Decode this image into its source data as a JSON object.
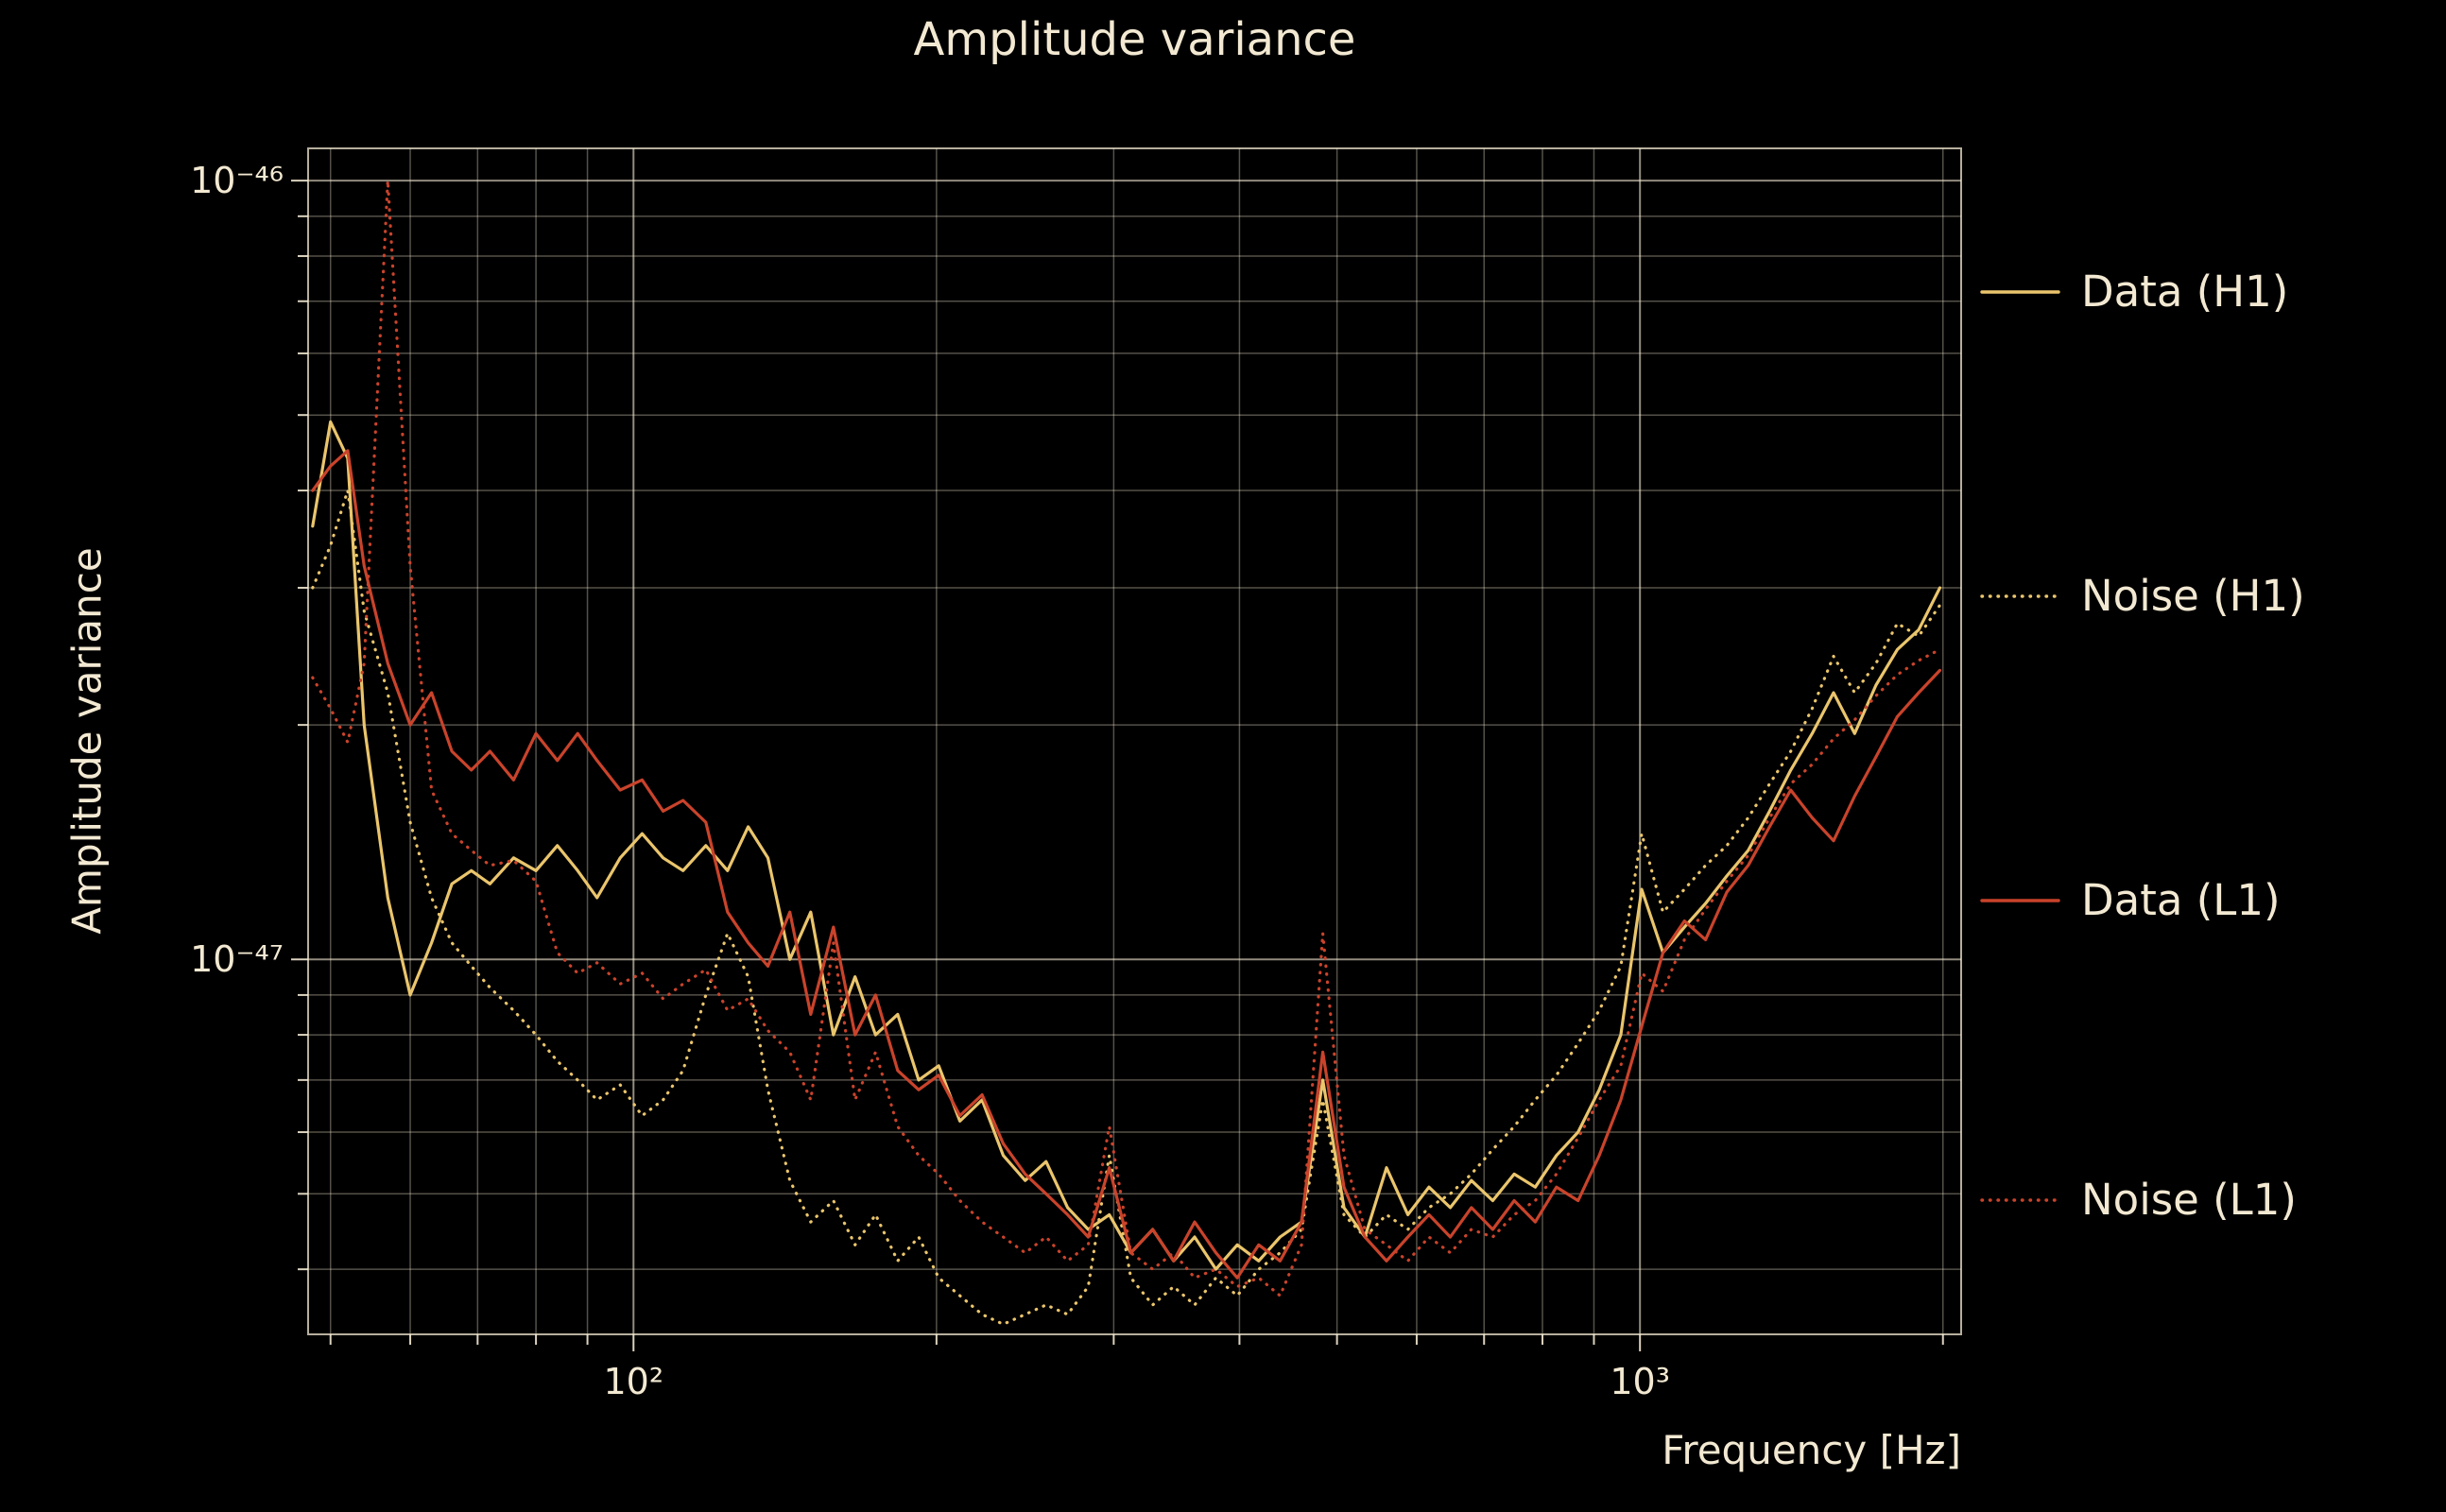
{
  "title": "Amplitude variance",
  "chart_data": {
    "type": "line",
    "title": "Amplitude variance",
    "xlabel": "Frequency [Hz]",
    "ylabel": "Amplitude variance",
    "x_scale": "log",
    "y_scale": "log",
    "grid": true,
    "legend_position": "right-outside",
    "xlim": [
      47.5,
      2085
    ],
    "ylim": [
      3.3e-48,
      1.1e-46
    ],
    "x_ticks": [
      {
        "value": 100,
        "label": "10²"
      },
      {
        "value": 1000,
        "label": "10³"
      }
    ],
    "y_ticks": [
      {
        "value": 1e-46,
        "label": "10⁻⁴⁶"
      },
      {
        "value": 1e-47,
        "label": "10⁻⁴⁷"
      }
    ],
    "colors": {
      "background": "#000000",
      "text": "#f3e9d2",
      "grid": "#f3e9d2",
      "gold": "#eac56c",
      "red": "#c9432b"
    },
    "values_unit": 1e-48,
    "frequencies_hz": [
      48,
      50,
      52,
      54,
      57,
      60,
      63,
      66,
      69,
      72,
      76,
      80,
      84,
      88,
      92,
      97,
      102,
      107,
      112,
      118,
      124,
      130,
      136,
      143,
      150,
      158,
      166,
      174,
      183,
      192,
      201,
      211,
      222,
      233,
      245,
      257,
      270,
      283,
      297,
      312,
      328,
      344,
      361,
      379,
      398,
      418,
      439,
      461,
      484,
      508,
      533,
      560,
      588,
      617,
      648,
      680,
      714,
      750,
      787,
      826,
      868,
      911,
      957,
      1004,
      1054,
      1107,
      1162,
      1220,
      1281,
      1345,
      1412,
      1483,
      1557,
      1634,
      1716,
      1802,
      1892,
      1986
    ],
    "series": [
      {
        "name": "Data (H1)",
        "color": "#eac56c",
        "line_style": "solid",
        "values": [
          36,
          49,
          44,
          20,
          12,
          9,
          10.5,
          12.5,
          13,
          12.5,
          13.5,
          13,
          14,
          13,
          12,
          13.5,
          14.5,
          13.5,
          13,
          14,
          13,
          14.8,
          13.5,
          10,
          11.5,
          8,
          9.5,
          8,
          8.5,
          7,
          7.3,
          6.2,
          6.6,
          5.6,
          5.2,
          5.5,
          4.8,
          4.5,
          4.7,
          4.2,
          4.5,
          4.1,
          4.4,
          4,
          4.3,
          4.1,
          4.4,
          4.6,
          7,
          4.8,
          4.4,
          5.4,
          4.7,
          5.1,
          4.8,
          5.2,
          4.9,
          5.3,
          5.1,
          5.6,
          6,
          6.8,
          8,
          12.3,
          10.2,
          11,
          11.8,
          12.8,
          13.8,
          15.5,
          17.5,
          19.5,
          22,
          19.5,
          22.5,
          25,
          26.5,
          30
        ]
      },
      {
        "name": "Noise (H1)",
        "color": "#eac56c",
        "line_style": "dotted",
        "values": [
          30,
          34,
          40,
          28,
          22,
          15,
          12,
          10.5,
          9.8,
          9.2,
          8.6,
          8,
          7.4,
          7,
          6.6,
          6.9,
          6.3,
          6.6,
          7.2,
          9,
          10.8,
          9.5,
          6.8,
          5.2,
          4.6,
          4.9,
          4.3,
          4.7,
          4.1,
          4.4,
          3.9,
          3.7,
          3.5,
          3.4,
          3.5,
          3.6,
          3.5,
          3.8,
          5.6,
          3.9,
          3.6,
          3.8,
          3.6,
          3.9,
          3.7,
          4,
          4.2,
          4.5,
          6.6,
          4.7,
          4.4,
          4.7,
          4.5,
          4.8,
          5,
          5.3,
          5.7,
          6.1,
          6.6,
          7.1,
          7.8,
          8.6,
          9.8,
          14.5,
          11.5,
          12.3,
          13.2,
          14,
          15.2,
          16.8,
          18.5,
          21,
          24.5,
          22,
          24,
          27,
          26,
          28.5
        ]
      },
      {
        "name": "Data (L1)",
        "color": "#c9432b",
        "line_style": "solid",
        "values": [
          40,
          43,
          45,
          32,
          24,
          20,
          22,
          18.5,
          17.5,
          18.5,
          17,
          19.5,
          18,
          19.5,
          18,
          16.5,
          17,
          15.5,
          16,
          15,
          11.5,
          10.5,
          9.8,
          11.5,
          8.5,
          11,
          8,
          9,
          7.2,
          6.8,
          7.1,
          6.3,
          6.7,
          5.8,
          5.3,
          5,
          4.7,
          4.4,
          5.4,
          4.2,
          4.5,
          4.1,
          4.6,
          4.2,
          3.9,
          4.3,
          4.1,
          4.6,
          7.6,
          5.1,
          4.4,
          4.1,
          4.4,
          4.7,
          4.4,
          4.8,
          4.5,
          4.9,
          4.6,
          5.1,
          4.9,
          5.6,
          6.6,
          8.2,
          10.2,
          11.2,
          10.6,
          12.2,
          13.2,
          14.8,
          16.5,
          15.2,
          14.2,
          16.2,
          18.2,
          20.5,
          22,
          23.5
        ]
      },
      {
        "name": "Noise (L1)",
        "color": "#c9432b",
        "line_style": "dotted",
        "values": [
          23,
          21,
          19,
          24,
          100,
          32,
          16.5,
          14.5,
          13.8,
          13.2,
          13.4,
          12.6,
          10.2,
          9.6,
          9.9,
          9.3,
          9.6,
          8.9,
          9.3,
          9.7,
          8.6,
          8.9,
          8.1,
          7.6,
          6.6,
          10.5,
          6.6,
          7.6,
          6.1,
          5.6,
          5.3,
          4.9,
          4.6,
          4.4,
          4.2,
          4.4,
          4.1,
          4.3,
          6.1,
          4.2,
          4,
          4.2,
          3.9,
          4,
          3.8,
          3.9,
          3.7,
          4.3,
          10.8,
          5.6,
          4.5,
          4.3,
          4.1,
          4.4,
          4.2,
          4.5,
          4.4,
          4.7,
          4.9,
          5.3,
          5.9,
          6.6,
          7.3,
          9.6,
          9.1,
          10.6,
          11.6,
          12.6,
          13.6,
          15.2,
          16.8,
          17.8,
          19.2,
          20.3,
          21.8,
          23.2,
          24.2,
          25
        ]
      }
    ]
  }
}
